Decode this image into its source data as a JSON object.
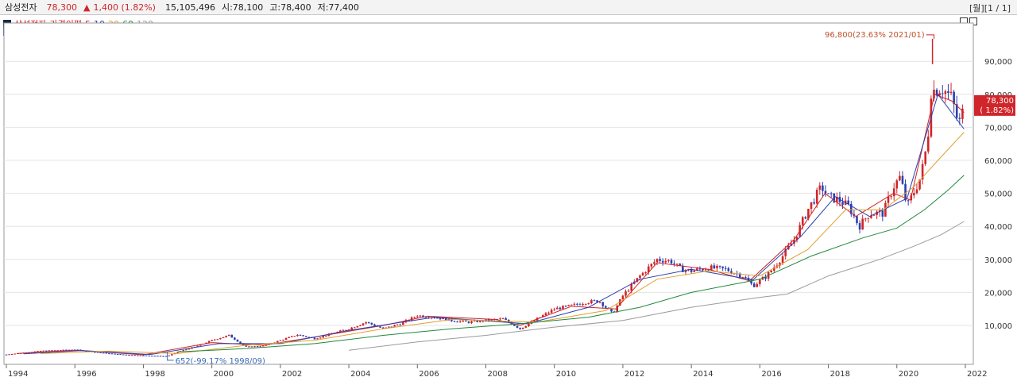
{
  "header": {
    "name": "삼성전자",
    "price": "78,300",
    "arrow": "▲",
    "change": "1,400 (1.82%)",
    "volume": "15,105,496",
    "open": "시:78,100",
    "high": "고:78,400",
    "low": "저:77,400",
    "page": "[월][1 / 1]"
  },
  "legend": {
    "stock": "삼성전자",
    "indicator": "가격이평",
    "ma": [
      {
        "label": "5",
        "color": "#d0252a"
      },
      {
        "label": "10",
        "color": "#2b3fb0"
      },
      {
        "label": "20",
        "color": "#e0a030"
      },
      {
        "label": "60",
        "color": "#1f8a3a"
      },
      {
        "label": "120",
        "color": "#9a9a9a"
      }
    ]
  },
  "icons": {
    "legend_box": "square-icon",
    "ho": "호"
  },
  "colors": {
    "up": "#d0252a",
    "down": "#2b3fb0",
    "ma5": "#d0252a",
    "ma10": "#2b3fb0",
    "ma20": "#e0a030",
    "ma60": "#1f8a3a",
    "ma120": "#9a9a9a"
  },
  "chart_data": {
    "type": "candlestick",
    "period": "monthly",
    "x_ticks": [
      "1994",
      "1996",
      "1998",
      "2000",
      "2002",
      "2004",
      "2006",
      "2008",
      "2010",
      "2012",
      "2014",
      "2016",
      "2018",
      "2020",
      "2022"
    ],
    "y_ticks": [
      "10,000",
      "20,000",
      "30,000",
      "40,000",
      "50,000",
      "60,000",
      "70,000",
      "80,000",
      "90,000"
    ],
    "ylim": [
      0,
      100000
    ],
    "xlim": [
      1994.0,
      2022.0
    ],
    "last_price_label": "78,300",
    "last_change_label": "( 1.82%)",
    "last_price": 78300,
    "annotations": {
      "high": {
        "text": "96,800(23.63% 2021/01)",
        "x": 2021.04,
        "y": 96800
      },
      "low": {
        "text": "652(-99.17% 1998/09)",
        "x": 1998.7,
        "y": 652
      }
    },
    "price_series": [
      [
        1994.0,
        1200
      ],
      [
        1995.0,
        2300
      ],
      [
        1996.0,
        2700
      ],
      [
        1996.5,
        2000
      ],
      [
        1997.0,
        1500
      ],
      [
        1997.5,
        1100
      ],
      [
        1998.0,
        900
      ],
      [
        1998.7,
        700
      ],
      [
        1999.0,
        2000
      ],
      [
        1999.5,
        3500
      ],
      [
        2000.0,
        5500
      ],
      [
        2000.5,
        7000
      ],
      [
        2001.0,
        3500
      ],
      [
        2001.5,
        3800
      ],
      [
        2002.0,
        5500
      ],
      [
        2002.5,
        7200
      ],
      [
        2003.0,
        6000
      ],
      [
        2003.5,
        7500
      ],
      [
        2004.0,
        9000
      ],
      [
        2004.5,
        11000
      ],
      [
        2005.0,
        9000
      ],
      [
        2005.5,
        10500
      ],
      [
        2006.0,
        13000
      ],
      [
        2006.5,
        12500
      ],
      [
        2007.0,
        11500
      ],
      [
        2007.5,
        11000
      ],
      [
        2008.0,
        11500
      ],
      [
        2008.5,
        12000
      ],
      [
        2009.0,
        9000
      ],
      [
        2009.5,
        12000
      ],
      [
        2010.0,
        15000
      ],
      [
        2010.5,
        16000
      ],
      [
        2010.9,
        17000
      ],
      [
        2011.3,
        17500
      ],
      [
        2011.7,
        13500
      ],
      [
        2012.0,
        19000
      ],
      [
        2012.5,
        25000
      ],
      [
        2013.0,
        30000
      ],
      [
        2013.4,
        29500
      ],
      [
        2013.7,
        27000
      ],
      [
        2014.0,
        26500
      ],
      [
        2014.5,
        27500
      ],
      [
        2015.0,
        27000
      ],
      [
        2015.5,
        25000
      ],
      [
        2015.8,
        22000
      ],
      [
        2016.2,
        25000
      ],
      [
        2016.6,
        30000
      ],
      [
        2017.0,
        36000
      ],
      [
        2017.4,
        45000
      ],
      [
        2017.8,
        52000
      ],
      [
        2018.0,
        49000
      ],
      [
        2018.3,
        48000
      ],
      [
        2018.6,
        46000
      ],
      [
        2018.9,
        40000
      ],
      [
        2019.2,
        44000
      ],
      [
        2019.6,
        44000
      ],
      [
        2019.9,
        52000
      ],
      [
        2020.1,
        55000
      ],
      [
        2020.3,
        46000
      ],
      [
        2020.7,
        55000
      ],
      [
        2020.9,
        66000
      ],
      [
        2021.0,
        81000
      ],
      [
        2021.3,
        82000
      ],
      [
        2021.6,
        79000
      ],
      [
        2021.8,
        71000
      ],
      [
        2021.9,
        73000
      ],
      [
        2021.96,
        78300
      ]
    ],
    "ma_series": [
      {
        "name": "5",
        "points": [
          [
            1994.3,
            1500
          ],
          [
            1996.0,
            2500
          ],
          [
            1998.0,
            1100
          ],
          [
            2000.0,
            4800
          ],
          [
            2001.5,
            4000
          ],
          [
            2003.0,
            6500
          ],
          [
            2005.0,
            10000
          ],
          [
            2006.3,
            12800
          ],
          [
            2008.3,
            11800
          ],
          [
            2009.0,
            10000
          ],
          [
            2010.5,
            15800
          ],
          [
            2011.8,
            15000
          ],
          [
            2013.0,
            29000
          ],
          [
            2014.5,
            27000
          ],
          [
            2015.7,
            23500
          ],
          [
            2017.0,
            36000
          ],
          [
            2017.9,
            50000
          ],
          [
            2018.8,
            43000
          ],
          [
            2019.9,
            50000
          ],
          [
            2020.4,
            48000
          ],
          [
            2021.1,
            80000
          ],
          [
            2021.6,
            78000
          ],
          [
            2021.96,
            74500
          ]
        ]
      },
      {
        "name": "10",
        "points": [
          [
            1994.5,
            1400
          ],
          [
            1996.2,
            2400
          ],
          [
            1998.2,
            1200
          ],
          [
            2000.2,
            4500
          ],
          [
            2002.0,
            4500
          ],
          [
            2004.0,
            8500
          ],
          [
            2006.5,
            12500
          ],
          [
            2009.2,
            10500
          ],
          [
            2011.0,
            15500
          ],
          [
            2012.5,
            24000
          ],
          [
            2014.0,
            27000
          ],
          [
            2015.8,
            23800
          ],
          [
            2017.2,
            37000
          ],
          [
            2018.2,
            49000
          ],
          [
            2019.2,
            43000
          ],
          [
            2020.3,
            48500
          ],
          [
            2021.2,
            80000
          ],
          [
            2021.96,
            69500
          ]
        ]
      },
      {
        "name": "20",
        "points": [
          [
            1995.0,
            1500
          ],
          [
            1997.0,
            2200
          ],
          [
            1999.0,
            1500
          ],
          [
            2001.0,
            4000
          ],
          [
            2003.0,
            5500
          ],
          [
            2005.0,
            9000
          ],
          [
            2007.0,
            11800
          ],
          [
            2009.5,
            11000
          ],
          [
            2011.5,
            14500
          ],
          [
            2013.0,
            24000
          ],
          [
            2014.5,
            26500
          ],
          [
            2016.0,
            25000
          ],
          [
            2017.4,
            33000
          ],
          [
            2018.5,
            45000
          ],
          [
            2019.6,
            45000
          ],
          [
            2020.5,
            52000
          ],
          [
            2021.2,
            60000
          ],
          [
            2021.96,
            68500
          ]
        ]
      },
      {
        "name": "60",
        "points": [
          [
            1999.0,
            2000
          ],
          [
            2001.0,
            3000
          ],
          [
            2003.0,
            4500
          ],
          [
            2005.0,
            7000
          ],
          [
            2007.0,
            9000
          ],
          [
            2009.0,
            10500
          ],
          [
            2011.0,
            12500
          ],
          [
            2012.5,
            15500
          ],
          [
            2014.0,
            20000
          ],
          [
            2016.0,
            24000
          ],
          [
            2017.5,
            31000
          ],
          [
            2019.0,
            36500
          ],
          [
            2020.0,
            39500
          ],
          [
            2020.8,
            45000
          ],
          [
            2021.5,
            51000
          ],
          [
            2021.96,
            55500
          ]
        ]
      },
      {
        "name": "120",
        "points": [
          [
            2004.0,
            2500
          ],
          [
            2006.0,
            5000
          ],
          [
            2008.0,
            7000
          ],
          [
            2010.0,
            9500
          ],
          [
            2012.0,
            11500
          ],
          [
            2014.0,
            15500
          ],
          [
            2016.0,
            18500
          ],
          [
            2016.8,
            19500
          ],
          [
            2018.0,
            25000
          ],
          [
            2019.5,
            30000
          ],
          [
            2020.5,
            34000
          ],
          [
            2021.3,
            37500
          ],
          [
            2021.96,
            41500
          ]
        ]
      }
    ]
  }
}
